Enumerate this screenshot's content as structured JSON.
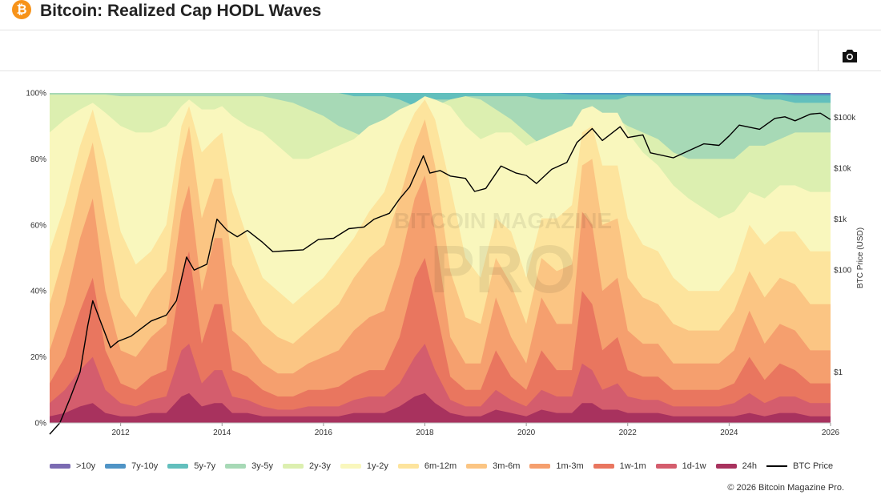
{
  "header": {
    "logo_glyph": "₿",
    "title": "Bitcoin: Realized Cap HODL Waves"
  },
  "toolbar": {
    "camera_icon": "camera-icon"
  },
  "watermark": {
    "line1": "BITCOIN MAGAZINE",
    "line2": "PRO"
  },
  "chart_data": {
    "type": "area",
    "stacked": true,
    "title": "Bitcoin: Realized Cap HODL Waves",
    "x_ticks": [
      "2012",
      "2014",
      "2016",
      "2018",
      "2020",
      "2022",
      "2024",
      "2026"
    ],
    "y_ticks": [
      "0%",
      "20%",
      "40%",
      "60%",
      "80%",
      "100%"
    ],
    "ylim": [
      0,
      100
    ],
    "y2_label": "BTC Price (USD)",
    "y2_ticks": [
      {
        "label": "$1",
        "value": 1
      },
      {
        "label": "$100",
        "value": 100
      },
      {
        "label": "$1k",
        "value": 1000
      },
      {
        "label": "$10k",
        "value": 10000
      },
      {
        "label": "$100k",
        "value": 100000
      }
    ],
    "y2_range": [
      0.1,
      300000
    ],
    "x_range": [
      2010.6,
      2026.0
    ],
    "years": [
      2010.6,
      2010.9,
      2011.2,
      2011.45,
      2011.7,
      2012.0,
      2012.3,
      2012.6,
      2012.9,
      2013.2,
      2013.35,
      2013.6,
      2013.85,
      2014.0,
      2014.2,
      2014.5,
      2014.8,
      2015.1,
      2015.4,
      2015.7,
      2016.0,
      2016.3,
      2016.6,
      2016.9,
      2017.2,
      2017.5,
      2017.8,
      2018.0,
      2018.2,
      2018.5,
      2018.8,
      2019.1,
      2019.4,
      2019.7,
      2020.0,
      2020.3,
      2020.6,
      2020.9,
      2021.1,
      2021.3,
      2021.5,
      2021.8,
      2022.0,
      2022.3,
      2022.6,
      2022.9,
      2023.2,
      2023.5,
      2023.8,
      2024.1,
      2024.4,
      2024.7,
      2025.0,
      2025.3,
      2025.6,
      2026.0
    ],
    "bands": [
      {
        "name": "24h",
        "color": "#a8325e",
        "values": [
          2,
          3,
          5,
          6,
          3,
          2,
          2,
          3,
          3,
          8,
          9,
          5,
          6,
          6,
          3,
          3,
          2,
          2,
          2,
          2,
          2,
          2,
          3,
          3,
          3,
          5,
          8,
          9,
          6,
          3,
          2,
          2,
          4,
          3,
          2,
          4,
          3,
          3,
          6,
          6,
          4,
          4,
          3,
          3,
          3,
          2,
          2,
          2,
          2,
          2,
          3,
          2,
          3,
          3,
          2,
          2
        ]
      },
      {
        "name": "1d-1w",
        "color": "#d45d6d",
        "values": [
          6,
          10,
          16,
          20,
          10,
          6,
          5,
          7,
          8,
          22,
          24,
          12,
          16,
          16,
          8,
          7,
          5,
          4,
          4,
          5,
          5,
          5,
          7,
          8,
          8,
          12,
          20,
          24,
          16,
          7,
          5,
          5,
          10,
          7,
          5,
          10,
          8,
          8,
          18,
          16,
          10,
          12,
          8,
          7,
          7,
          5,
          5,
          5,
          5,
          6,
          9,
          6,
          8,
          8,
          6,
          6
        ]
      },
      {
        "name": "1w-1m",
        "color": "#e9765f",
        "values": [
          12,
          20,
          34,
          44,
          22,
          12,
          10,
          14,
          16,
          45,
          52,
          24,
          36,
          36,
          16,
          14,
          10,
          8,
          8,
          10,
          10,
          11,
          14,
          16,
          16,
          26,
          44,
          50,
          36,
          14,
          10,
          10,
          22,
          14,
          10,
          22,
          16,
          16,
          40,
          36,
          22,
          26,
          16,
          14,
          14,
          10,
          10,
          10,
          10,
          12,
          20,
          13,
          18,
          16,
          12,
          12
        ]
      },
      {
        "name": "1m-3m",
        "color": "#f59f6e",
        "values": [
          22,
          36,
          56,
          68,
          40,
          22,
          20,
          26,
          30,
          64,
          72,
          40,
          56,
          56,
          28,
          24,
          18,
          15,
          15,
          18,
          20,
          22,
          28,
          32,
          34,
          48,
          68,
          75,
          58,
          26,
          18,
          18,
          38,
          26,
          18,
          38,
          30,
          30,
          64,
          60,
          40,
          44,
          28,
          24,
          24,
          18,
          18,
          18,
          18,
          22,
          34,
          24,
          30,
          28,
          22,
          22
        ]
      },
      {
        "name": "3m-6m",
        "color": "#fbc583",
        "values": [
          36,
          52,
          72,
          85,
          62,
          38,
          32,
          40,
          46,
          80,
          90,
          62,
          74,
          74,
          48,
          38,
          30,
          26,
          24,
          28,
          32,
          36,
          44,
          50,
          54,
          68,
          84,
          92,
          78,
          46,
          32,
          30,
          50,
          42,
          30,
          50,
          46,
          48,
          78,
          80,
          60,
          62,
          44,
          38,
          36,
          30,
          28,
          28,
          28,
          34,
          46,
          38,
          44,
          42,
          36,
          36
        ]
      },
      {
        "name": "6m-12m",
        "color": "#fde49d",
        "values": [
          52,
          66,
          84,
          95,
          80,
          58,
          48,
          52,
          60,
          90,
          96,
          82,
          86,
          88,
          70,
          56,
          44,
          40,
          36,
          40,
          44,
          50,
          56,
          64,
          70,
          84,
          94,
          98,
          92,
          72,
          50,
          44,
          62,
          58,
          44,
          62,
          62,
          66,
          88,
          90,
          78,
          78,
          62,
          54,
          52,
          44,
          40,
          40,
          40,
          46,
          60,
          54,
          58,
          58,
          52,
          52
        ]
      },
      {
        "name": "1y-2y",
        "color": "#f9f7bd",
        "values": [
          88,
          92,
          95,
          97,
          94,
          90,
          88,
          88,
          90,
          96,
          98,
          95,
          95,
          96,
          93,
          90,
          88,
          84,
          80,
          80,
          82,
          84,
          86,
          90,
          92,
          95,
          97,
          99,
          98,
          96,
          90,
          86,
          88,
          88,
          84,
          86,
          88,
          90,
          95,
          96,
          94,
          94,
          88,
          82,
          78,
          72,
          68,
          65,
          62,
          64,
          70,
          68,
          72,
          72,
          70,
          70
        ]
      },
      {
        "name": "2y-3y",
        "color": "#dcefb0",
        "values": [
          99.5,
          99.5,
          99.5,
          99.5,
          99.5,
          99,
          99,
          99,
          99,
          99,
          99,
          99,
          99,
          99,
          99,
          99,
          99,
          98,
          97,
          95,
          93,
          90,
          88,
          86,
          84,
          84,
          86,
          92,
          96,
          98,
          99,
          98,
          95,
          92,
          88,
          84,
          82,
          80,
          82,
          86,
          90,
          92,
          90,
          88,
          86,
          82,
          80,
          80,
          80,
          80,
          84,
          84,
          86,
          88,
          88,
          88
        ]
      },
      {
        "name": "3y-5y",
        "color": "#a7d9b6",
        "values": [
          100,
          100,
          100,
          100,
          100,
          100,
          100,
          100,
          100,
          100,
          100,
          100,
          100,
          100,
          100,
          100,
          100,
          100,
          100,
          100,
          100,
          100,
          99,
          99,
          99,
          98,
          96,
          97,
          98,
          98,
          99,
          99,
          99,
          99,
          99,
          98,
          98,
          98,
          98,
          98,
          98,
          98,
          99,
          99,
          99,
          99,
          99,
          99,
          99,
          99,
          99,
          98,
          98,
          97,
          97,
          97
        ]
      },
      {
        "name": "5y-7y",
        "color": "#62bfbd",
        "values": [
          100,
          100,
          100,
          100,
          100,
          100,
          100,
          100,
          100,
          100,
          100,
          100,
          100,
          100,
          100,
          100,
          100,
          100,
          100,
          100,
          100,
          100,
          100,
          100,
          100,
          100,
          100,
          100,
          100,
          100,
          100,
          100,
          100,
          100,
          100,
          100,
          100,
          99.5,
          99.5,
          99.5,
          99.5,
          99.5,
          99.5,
          99.5,
          99.5,
          99.5,
          99.5,
          99.5,
          99.5,
          99.5,
          99.5,
          99.5,
          99.5,
          99.2,
          99.2,
          99.2
        ]
      },
      {
        "name": "7y-10y",
        "color": "#4f94c6",
        "values": [
          100,
          100,
          100,
          100,
          100,
          100,
          100,
          100,
          100,
          100,
          100,
          100,
          100,
          100,
          100,
          100,
          100,
          100,
          100,
          100,
          100,
          100,
          100,
          100,
          100,
          100,
          100,
          100,
          100,
          100,
          100,
          100,
          100,
          100,
          100,
          100,
          100,
          100,
          100,
          100,
          100,
          100,
          100,
          100,
          100,
          100,
          100,
          100,
          100,
          100,
          100,
          100,
          100,
          99.7,
          99.7,
          99.7
        ]
      },
      {
        "name": ">10y",
        "color": "#7b6bb2",
        "values": [
          100,
          100,
          100,
          100,
          100,
          100,
          100,
          100,
          100,
          100,
          100,
          100,
          100,
          100,
          100,
          100,
          100,
          100,
          100,
          100,
          100,
          100,
          100,
          100,
          100,
          100,
          100,
          100,
          100,
          100,
          100,
          100,
          100,
          100,
          100,
          100,
          100,
          100,
          100,
          100,
          100,
          100,
          100,
          100,
          100,
          100,
          100,
          100,
          100,
          100,
          100,
          100,
          100,
          100,
          100,
          100
        ]
      }
    ],
    "btc_price": {
      "name": "BTC Price",
      "color": "#000000",
      "points": [
        [
          2010.6,
          0.06
        ],
        [
          2010.8,
          0.1
        ],
        [
          2011.0,
          0.3
        ],
        [
          2011.2,
          1
        ],
        [
          2011.35,
          8
        ],
        [
          2011.45,
          25
        ],
        [
          2011.6,
          10
        ],
        [
          2011.8,
          3
        ],
        [
          2011.95,
          4
        ],
        [
          2012.2,
          5
        ],
        [
          2012.6,
          10
        ],
        [
          2012.9,
          13
        ],
        [
          2013.1,
          25
        ],
        [
          2013.3,
          180
        ],
        [
          2013.45,
          100
        ],
        [
          2013.7,
          130
        ],
        [
          2013.9,
          1000
        ],
        [
          2014.1,
          600
        ],
        [
          2014.3,
          450
        ],
        [
          2014.5,
          600
        ],
        [
          2014.8,
          350
        ],
        [
          2015.0,
          230
        ],
        [
          2015.3,
          240
        ],
        [
          2015.6,
          250
        ],
        [
          2015.9,
          400
        ],
        [
          2016.2,
          420
        ],
        [
          2016.5,
          650
        ],
        [
          2016.8,
          700
        ],
        [
          2017.0,
          1000
        ],
        [
          2017.3,
          1300
        ],
        [
          2017.5,
          2500
        ],
        [
          2017.7,
          4300
        ],
        [
          2017.97,
          17500
        ],
        [
          2018.1,
          8000
        ],
        [
          2018.3,
          9000
        ],
        [
          2018.5,
          7000
        ],
        [
          2018.8,
          6300
        ],
        [
          2018.98,
          3500
        ],
        [
          2019.2,
          4000
        ],
        [
          2019.5,
          11000
        ],
        [
          2019.8,
          8000
        ],
        [
          2020.0,
          7200
        ],
        [
          2020.2,
          5000
        ],
        [
          2020.5,
          9500
        ],
        [
          2020.8,
          13000
        ],
        [
          2021.0,
          32000
        ],
        [
          2021.3,
          60000
        ],
        [
          2021.5,
          35000
        ],
        [
          2021.85,
          65000
        ],
        [
          2022.0,
          40000
        ],
        [
          2022.3,
          45000
        ],
        [
          2022.45,
          20000
        ],
        [
          2022.9,
          16000
        ],
        [
          2023.2,
          22000
        ],
        [
          2023.5,
          30000
        ],
        [
          2023.8,
          28000
        ],
        [
          2024.0,
          43000
        ],
        [
          2024.2,
          70000
        ],
        [
          2024.6,
          58000
        ],
        [
          2024.9,
          95000
        ],
        [
          2025.1,
          102000
        ],
        [
          2025.3,
          85000
        ],
        [
          2025.6,
          115000
        ],
        [
          2025.8,
          120000
        ],
        [
          2026.0,
          90000
        ]
      ]
    },
    "legend": [
      ">10y",
      "7y-10y",
      "5y-7y",
      "3y-5y",
      "2y-3y",
      "1y-2y",
      "6m-12m",
      "3m-6m",
      "1m-3m",
      "1w-1m",
      "1d-1w",
      "24h",
      "BTC Price"
    ],
    "legend_colors": [
      "#7b6bb2",
      "#4f94c6",
      "#62bfbd",
      "#a7d9b6",
      "#dcefb0",
      "#f9f7bd",
      "#fde49d",
      "#fbc583",
      "#f59f6e",
      "#e9765f",
      "#d45d6d",
      "#a8325e",
      "#000000"
    ]
  },
  "footer": {
    "copyright": "© 2026 Bitcoin Magazine Pro."
  }
}
